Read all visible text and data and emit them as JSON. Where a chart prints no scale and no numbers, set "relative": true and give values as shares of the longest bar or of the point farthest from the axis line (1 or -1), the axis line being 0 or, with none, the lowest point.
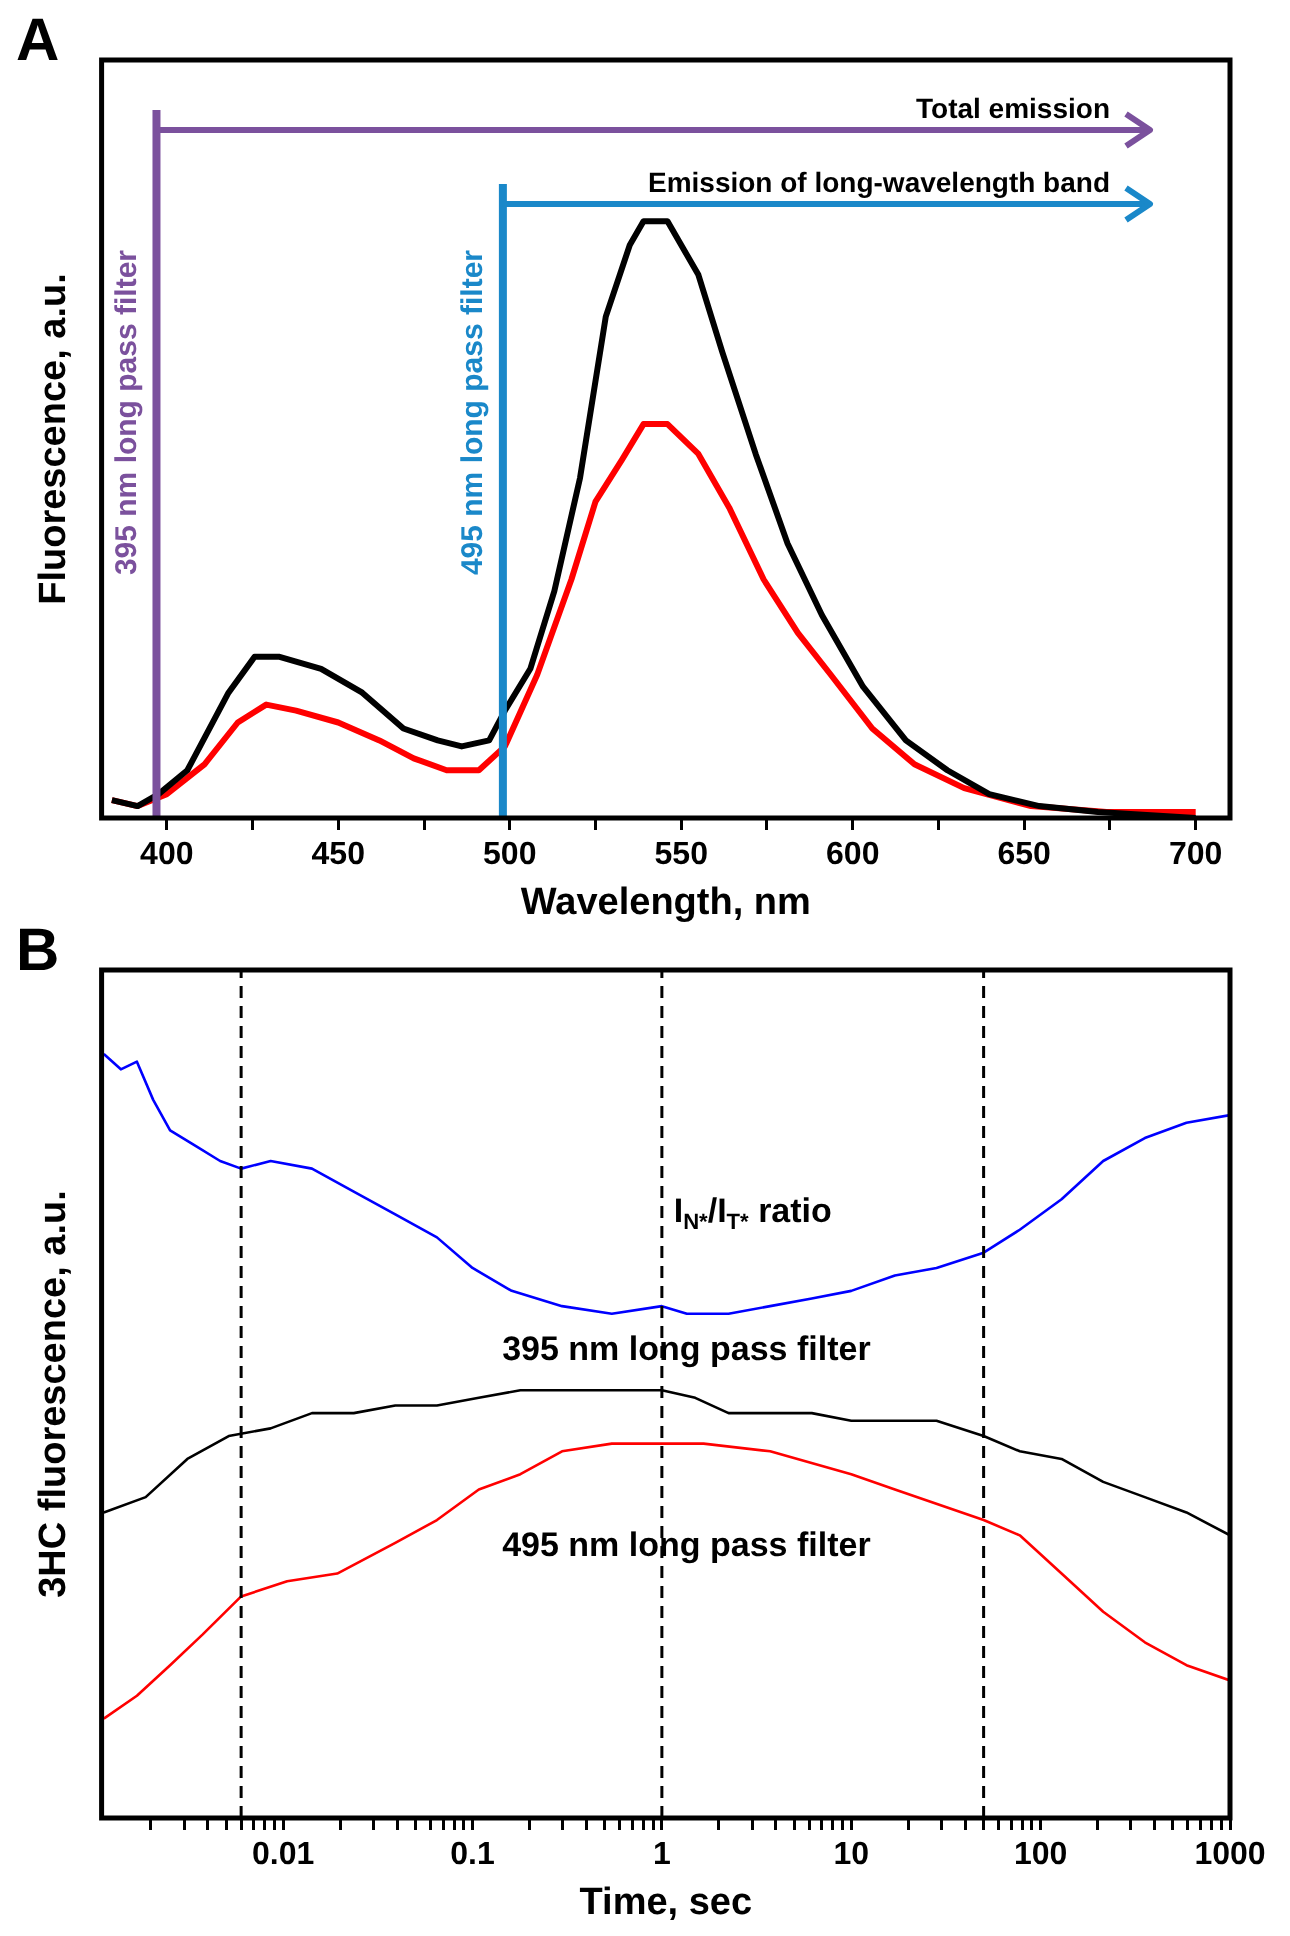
{
  "chart_data": [
    {
      "type": "line",
      "relative": true,
      "xlabel": "Wavelength, nm",
      "ylabel": "Fluorescence, a.u.",
      "xlim": [
        381,
        710
      ],
      "xticks": [
        400,
        {
          "value": 425,
          "label": null
        },
        450,
        {
          "value": 475,
          "label": null
        },
        500,
        {
          "value": 525,
          "label": null
        },
        550,
        {
          "value": 575,
          "label": null
        },
        600,
        {
          "value": 625,
          "label": null
        },
        650,
        {
          "value": 675,
          "label": null
        },
        700
      ],
      "tick_labels": "x",
      "grid": false,
      "legend": false,
      "line_style": "solid",
      "annotations": [
        "A",
        "Total emission",
        "Emission of long-wavelength band"
      ],
      "ref_lines": [
        {
          "axis": "x",
          "value": 397,
          "label": "395 nm long pass filter",
          "color": "#7b519d"
        },
        {
          "axis": "x",
          "value": 498,
          "label": "495 nm long pass filter",
          "color": "#1a88c9"
        }
      ],
      "series": [
        {
          "color": "#000000",
          "x": [
            384,
            391.5,
            397.6,
            406,
            418,
            425.6,
            432.9,
            445,
            457,
            469,
            479,
            486,
            494,
            498.6,
            506,
            513,
            520.5,
            528,
            535,
            539,
            546,
            555,
            562,
            571.7,
            581,
            591,
            603,
            615.5,
            627.6,
            639.8,
            654.4,
            671.5,
            700
          ],
          "values": [
            0.03,
            0.02,
            0.04,
            0.08,
            0.21,
            0.27,
            0.27,
            0.25,
            0.21,
            0.15,
            0.13,
            0.12,
            0.13,
            0.18,
            0.25,
            0.38,
            0.57,
            0.84,
            0.96,
            1,
            1,
            0.91,
            0.78,
            0.61,
            0.46,
            0.34,
            0.22,
            0.13,
            0.08,
            0.04,
            0.02,
            0.01,
            0
          ]
        },
        {
          "color": "#ff0000",
          "x": [
            384,
            391.5,
            400,
            411,
            420.7,
            429,
            437.7,
            450,
            462,
            472,
            481.6,
            491,
            498.6,
            508,
            518,
            525,
            532.7,
            539,
            546,
            555,
            564,
            574,
            584,
            593.6,
            605.7,
            618,
            632.5,
            652,
            674,
            700
          ],
          "values": [
            0.03,
            0.02,
            0.04,
            0.09,
            0.16,
            0.19,
            0.18,
            0.16,
            0.13,
            0.1,
            0.08,
            0.08,
            0.12,
            0.24,
            0.4,
            0.53,
            0.6,
            0.66,
            0.66,
            0.61,
            0.52,
            0.4,
            0.31,
            0.24,
            0.15,
            0.09,
            0.05,
            0.02,
            0.01,
            0.01
          ]
        }
      ]
    },
    {
      "type": "line",
      "relative": true,
      "log": "x",
      "xlabel": "Time, sec",
      "ylabel": "3HC fluorescence, a.u.",
      "xlim": [
        0.0011,
        1000
      ],
      "xticks": [
        {
          "value": 0.002,
          "label": null
        },
        {
          "value": 0.003,
          "label": null
        },
        {
          "value": 0.004,
          "label": null
        },
        {
          "value": 0.005,
          "label": null
        },
        {
          "value": 0.006,
          "label": null
        },
        {
          "value": 0.007,
          "label": null
        },
        {
          "value": 0.008,
          "label": null
        },
        {
          "value": 0.009,
          "label": null
        },
        0.01,
        {
          "value": 0.02,
          "label": null
        },
        {
          "value": 0.03,
          "label": null
        },
        {
          "value": 0.04,
          "label": null
        },
        {
          "value": 0.05,
          "label": null
        },
        {
          "value": 0.06,
          "label": null
        },
        {
          "value": 0.07,
          "label": null
        },
        {
          "value": 0.08,
          "label": null
        },
        {
          "value": 0.09,
          "label": null
        },
        0.1,
        {
          "value": 0.2,
          "label": null
        },
        {
          "value": 0.3,
          "label": null
        },
        {
          "value": 0.4,
          "label": null
        },
        {
          "value": 0.5,
          "label": null
        },
        {
          "value": 0.6,
          "label": null
        },
        {
          "value": 0.7,
          "label": null
        },
        {
          "value": 0.8,
          "label": null
        },
        {
          "value": 0.9,
          "label": null
        },
        1,
        {
          "value": 2,
          "label": null
        },
        {
          "value": 3,
          "label": null
        },
        {
          "value": 4,
          "label": null
        },
        {
          "value": 5,
          "label": null
        },
        {
          "value": 6,
          "label": null
        },
        {
          "value": 7,
          "label": null
        },
        {
          "value": 8,
          "label": null
        },
        {
          "value": 9,
          "label": null
        },
        10,
        {
          "value": 20,
          "label": null
        },
        {
          "value": 30,
          "label": null
        },
        {
          "value": 40,
          "label": null
        },
        {
          "value": 50,
          "label": null
        },
        {
          "value": 60,
          "label": null
        },
        {
          "value": 70,
          "label": null
        },
        {
          "value": 80,
          "label": null
        },
        {
          "value": 90,
          "label": null
        },
        100,
        {
          "value": 200,
          "label": null
        },
        {
          "value": 300,
          "label": null
        },
        {
          "value": 400,
          "label": null
        },
        {
          "value": 500,
          "label": null
        },
        {
          "value": 600,
          "label": null
        },
        {
          "value": 700,
          "label": null
        },
        {
          "value": 800,
          "label": null
        },
        {
          "value": 900,
          "label": null
        },
        1000
      ],
      "tick_labels": "x",
      "grid": false,
      "legend": false,
      "line_style": "solid",
      "annotations": [
        "B"
      ],
      "ref_lines": [
        {
          "axis": "x",
          "value": 0.006,
          "color": "#000000",
          "line_style": "dashed"
        },
        {
          "axis": "x",
          "value": 1,
          "color": "#000000",
          "line_style": "dashed"
        },
        {
          "axis": "x",
          "value": 50,
          "color": "#000000",
          "line_style": "dashed"
        }
      ],
      "series": [
        {
          "name": "I$_{N*}$/I$_{T*}$ ratio",
          "color": "#0000ff",
          "x": [
            0.00113,
            0.00139,
            0.00169,
            0.00206,
            0.00253,
            0.00343,
            0.00465,
            0.006,
            0.00859,
            0.0142,
            0.0236,
            0.0391,
            0.0649,
            0.1,
            0.161,
            0.297,
            0.544,
            1,
            1.355,
            2.25,
            3.73,
            6.19,
            10,
            17,
            28.2,
            50,
            77.6,
            129,
            214,
            355,
            589,
            1000
          ],
          "values": [
            1,
            0.98,
            0.99,
            0.94,
            0.9,
            0.88,
            0.86,
            0.85,
            0.86,
            0.85,
            0.82,
            0.79,
            0.76,
            0.72,
            0.69,
            0.67,
            0.66,
            0.67,
            0.66,
            0.66,
            0.67,
            0.68,
            0.69,
            0.71,
            0.72,
            0.74,
            0.77,
            0.81,
            0.86,
            0.89,
            0.91,
            0.92
          ]
        },
        {
          "name": "395 nm long pass filter",
          "color": "#000000",
          "x": [
            0.00113,
            0.00188,
            0.00312,
            0.00516,
            0.00859,
            0.0142,
            0.0236,
            0.0391,
            0.0649,
            0.108,
            0.179,
            0.297,
            0.544,
            1,
            1.5,
            2.25,
            3.73,
            6.19,
            10,
            17,
            28.2,
            50,
            77.6,
            129,
            214,
            355,
            589,
            1000
          ],
          "values": [
            0.4,
            0.42,
            0.47,
            0.5,
            0.51,
            0.53,
            0.53,
            0.54,
            0.54,
            0.55,
            0.56,
            0.56,
            0.56,
            0.56,
            0.55,
            0.53,
            0.53,
            0.53,
            0.52,
            0.52,
            0.52,
            0.5,
            0.48,
            0.47,
            0.44,
            0.42,
            0.4,
            0.37
          ]
        },
        {
          "name": "495 nm long pass filter",
          "color": "#ff0000",
          "x": [
            0.00113,
            0.00169,
            0.00253,
            0.00375,
            0.006,
            0.0105,
            0.0193,
            0.0391,
            0.0649,
            0.108,
            0.179,
            0.297,
            0.544,
            1,
            1.66,
            3.73,
            10,
            17,
            50,
            77.6,
            129,
            214,
            355,
            589,
            1000
          ],
          "values": [
            0.13,
            0.16,
            0.2,
            0.24,
            0.29,
            0.31,
            0.32,
            0.36,
            0.39,
            0.43,
            0.45,
            0.48,
            0.49,
            0.49,
            0.49,
            0.48,
            0.45,
            0.43,
            0.39,
            0.37,
            0.32,
            0.27,
            0.23,
            0.2,
            0.18
          ]
        }
      ]
    }
  ]
}
